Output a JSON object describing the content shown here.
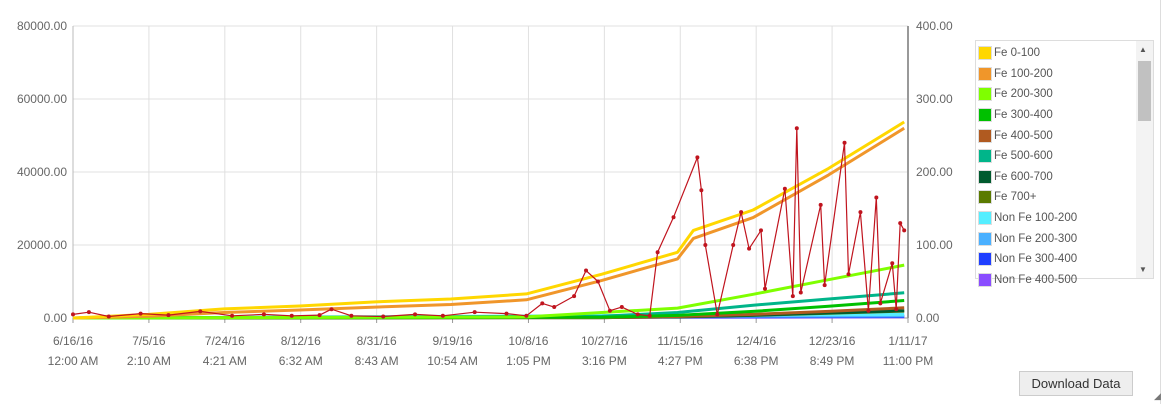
{
  "chart_data": {
    "type": "line",
    "x_tick_labels": [
      [
        "6/16/16",
        "12:00 AM"
      ],
      [
        "7/5/16",
        "2:10 AM"
      ],
      [
        "7/24/16",
        "4:21 AM"
      ],
      [
        "8/12/16",
        "6:32 AM"
      ],
      [
        "8/31/16",
        "8:43 AM"
      ],
      [
        "9/19/16",
        "10:54 AM"
      ],
      [
        "10/8/16",
        "1:05 PM"
      ],
      [
        "10/27/16",
        "3:16 PM"
      ],
      [
        "11/15/16",
        "4:27 PM"
      ],
      [
        "12/4/16",
        "6:38 PM"
      ],
      [
        "12/23/16",
        "8:49 PM"
      ],
      [
        "1/11/17",
        "11:00 PM"
      ]
    ],
    "xlim": [
      "2016-06-16",
      "2017-01-11"
    ],
    "y_left": {
      "ylim": [
        0,
        80000
      ],
      "ticks": [
        "0.00",
        "20000.00",
        "40000.00",
        "60000.00",
        "80000.00"
      ]
    },
    "y_right": {
      "ylim": [
        0,
        400
      ],
      "ticks": [
        "0.00",
        "100.00",
        "200.00",
        "300.00",
        "400.00"
      ]
    },
    "grid": true,
    "legend_placement": "right",
    "series": [
      {
        "name": "Fe 0-100",
        "color": "#ffd700",
        "axis": "left",
        "x": [
          "2016-06-16",
          "2016-07-05",
          "2016-07-24",
          "2016-08-12",
          "2016-08-31",
          "2016-09-19",
          "2016-10-08",
          "2016-10-27",
          "2016-11-15",
          "2016-11-19",
          "2016-12-04",
          "2016-12-23",
          "2017-01-11"
        ],
        "values": [
          0,
          1000,
          2500,
          3300,
          4400,
          5200,
          6600,
          12000,
          18000,
          24000,
          29600,
          41000,
          53700
        ]
      },
      {
        "name": "Fe 100-200",
        "color": "#f0962a",
        "axis": "left",
        "x": [
          "2016-06-16",
          "2016-07-05",
          "2016-07-24",
          "2016-08-12",
          "2016-08-31",
          "2016-09-19",
          "2016-10-08",
          "2016-10-27",
          "2016-11-15",
          "2016-11-19",
          "2016-12-04",
          "2016-12-23",
          "2017-01-11"
        ],
        "values": [
          0,
          500,
          1500,
          2200,
          3000,
          3700,
          5000,
          10300,
          16200,
          21800,
          27500,
          39200,
          52000
        ]
      },
      {
        "name": "Fe 200-300",
        "color": "#7fff00",
        "axis": "left",
        "x": [
          "2016-06-16",
          "2016-10-08",
          "2016-10-27",
          "2016-11-15",
          "2016-12-04",
          "2016-12-23",
          "2017-01-11"
        ],
        "values": [
          0,
          300,
          1500,
          2700,
          6500,
          10500,
          14500
        ]
      },
      {
        "name": "Fe 300-400",
        "color": "#00c000",
        "axis": "left",
        "x": [
          "2016-06-16",
          "2016-10-27",
          "2016-11-15",
          "2016-12-04",
          "2016-12-23",
          "2017-01-11"
        ],
        "values": [
          0,
          200,
          700,
          1800,
          3200,
          4800
        ]
      },
      {
        "name": "Fe 400-500",
        "color": "#b05a20",
        "axis": "left",
        "x": [
          "2016-06-16",
          "2016-10-27",
          "2016-11-15",
          "2016-12-04",
          "2016-12-23",
          "2017-01-11"
        ],
        "values": [
          0,
          100,
          400,
          1000,
          1800,
          2800
        ]
      },
      {
        "name": "Fe 500-600",
        "color": "#00b58a",
        "axis": "left",
        "x": [
          "2016-06-16",
          "2016-10-27",
          "2016-11-15",
          "2016-12-04",
          "2016-12-23",
          "2017-01-11"
        ],
        "values": [
          0,
          500,
          1500,
          3500,
          5200,
          6900
        ]
      },
      {
        "name": "Fe 600-700",
        "color": "#005a2e",
        "axis": "left",
        "x": [
          "2016-06-16",
          "2016-10-27",
          "2016-11-15",
          "2016-12-04",
          "2016-12-23",
          "2017-01-11"
        ],
        "values": [
          0,
          100,
          300,
          800,
          1400,
          2000
        ]
      },
      {
        "name": "Fe 700+",
        "color": "#5a7a00",
        "axis": "left",
        "x": [
          "2016-06-16",
          "2016-10-27",
          "2016-11-15",
          "2016-12-04",
          "2016-12-23",
          "2017-01-11"
        ],
        "values": [
          0,
          100,
          300,
          700,
          1300,
          1900
        ]
      },
      {
        "name": "Non Fe 100-200",
        "color": "#55eeff",
        "axis": "left",
        "x": [
          "2016-06-16",
          "2017-01-11"
        ],
        "values": [
          0,
          1000
        ]
      },
      {
        "name": "Non Fe 200-300",
        "color": "#4ab0ff",
        "axis": "left",
        "x": [
          "2016-06-16",
          "2017-01-11"
        ],
        "values": [
          0,
          600
        ]
      },
      {
        "name": "Non Fe 300-400",
        "color": "#1f3fff",
        "axis": "left",
        "x": [
          "2016-06-16",
          "2017-01-11"
        ],
        "values": [
          0,
          400
        ]
      },
      {
        "name": "Non Fe 400-500",
        "color": "#8a4dff",
        "axis": "left",
        "x": [
          "2016-06-16",
          "2017-01-11"
        ],
        "values": [
          0,
          300
        ]
      },
      {
        "color": "#c0141e",
        "axis": "right",
        "markers": true,
        "x": [
          "2016-06-16",
          "2016-06-20",
          "2016-06-25",
          "2016-07-03",
          "2016-07-10",
          "2016-07-18",
          "2016-07-26",
          "2016-08-03",
          "2016-08-10",
          "2016-08-17",
          "2016-08-20",
          "2016-08-25",
          "2016-09-02",
          "2016-09-10",
          "2016-09-17",
          "2016-09-25",
          "2016-10-03",
          "2016-10-08",
          "2016-10-12",
          "2016-10-15",
          "2016-10-20",
          "2016-10-23",
          "2016-10-26",
          "2016-10-29",
          "2016-11-01",
          "2016-11-05",
          "2016-11-08",
          "2016-11-10",
          "2016-11-14",
          "2016-11-20",
          "2016-11-21",
          "2016-11-22",
          "2016-11-25",
          "2016-11-29",
          "2016-12-01",
          "2016-12-03",
          "2016-12-06",
          "2016-12-07",
          "2016-12-12",
          "2016-12-14",
          "2016-12-15",
          "2016-12-16",
          "2016-12-21",
          "2016-12-22",
          "2016-12-27",
          "2016-12-28",
          "2016-12-31",
          "2017-01-02",
          "2017-01-04",
          "2017-01-05",
          "2017-01-08",
          "2017-01-09",
          "2017-01-10",
          "2017-01-11"
        ],
        "values": [
          5,
          8,
          2,
          6,
          4,
          9,
          3,
          5,
          3,
          4,
          12,
          3,
          2,
          5,
          3,
          8,
          6,
          3,
          20,
          15,
          30,
          65,
          50,
          10,
          15,
          5,
          3,
          90,
          138,
          220,
          175,
          100,
          5,
          100,
          145,
          95,
          120,
          40,
          177,
          30,
          260,
          35,
          155,
          45,
          240,
          60,
          145,
          10,
          165,
          20,
          75,
          12,
          130,
          120
        ]
      }
    ]
  },
  "legend_items": [
    "Fe 0-100",
    "Fe 100-200",
    "Fe 200-300",
    "Fe 300-400",
    "Fe 400-500",
    "Fe 500-600",
    "Fe 600-700",
    "Fe 700+",
    "Non Fe 100-200",
    "Non Fe 200-300",
    "Non Fe 300-400",
    "Non Fe 400-500"
  ],
  "download_label": "Download Data"
}
